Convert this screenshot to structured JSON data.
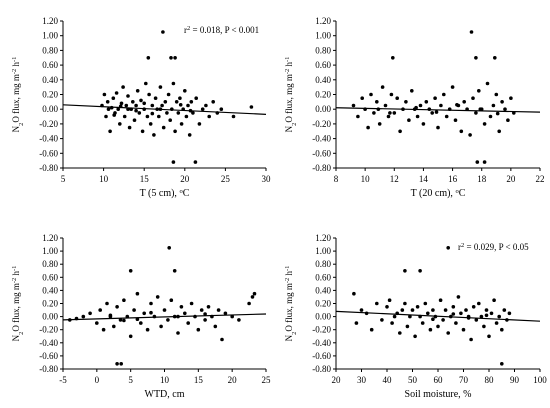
{
  "chart_data": [
    {
      "type": "scatter",
      "ylabel": "N2O flux, mg m-2 h-1",
      "xlabel": "T (5 cm), °C",
      "xlim": [
        5,
        30
      ],
      "ylim": [
        -0.8,
        1.2
      ],
      "xticks": [
        5,
        10,
        15,
        20,
        25,
        30
      ],
      "annotation": "r2 = 0.018, P < 0.001",
      "fit": {
        "x0": 5,
        "y0": 0.06,
        "x1": 30,
        "y1": -0.07
      },
      "points": [
        [
          9.8,
          0.05
        ],
        [
          10.1,
          0.2
        ],
        [
          10.3,
          -0.1
        ],
        [
          10.5,
          0.1
        ],
        [
          10.8,
          -0.3
        ],
        [
          11,
          0.02
        ],
        [
          11.2,
          0.15
        ],
        [
          11.4,
          -0.05
        ],
        [
          11.6,
          0.22
        ],
        [
          11.8,
          0.0
        ],
        [
          12,
          -0.2
        ],
        [
          12.2,
          0.08
        ],
        [
          12.4,
          0.3
        ],
        [
          12.6,
          -0.1
        ],
        [
          12.8,
          0.05
        ],
        [
          13,
          0.18
        ],
        [
          13.2,
          -0.25
        ],
        [
          13.4,
          0.0
        ],
        [
          13.6,
          0.1
        ],
        [
          13.8,
          -0.15
        ],
        [
          14,
          0.05
        ],
        [
          14.2,
          0.25
        ],
        [
          14.4,
          -0.05
        ],
        [
          14.6,
          0.12
        ],
        [
          14.8,
          -0.3
        ],
        [
          15,
          0.0
        ],
        [
          15.2,
          0.35
        ],
        [
          15.4,
          -0.1
        ],
        [
          15.6,
          0.2
        ],
        [
          15.8,
          -0.2
        ],
        [
          16,
          0.05
        ],
        [
          16.2,
          -0.35
        ],
        [
          16.4,
          0.15
        ],
        [
          16.6,
          0.0
        ],
        [
          16.8,
          -0.1
        ],
        [
          17,
          0.3
        ],
        [
          17.2,
          0.05
        ],
        [
          17.4,
          -0.25
        ],
        [
          17.6,
          0.1
        ],
        [
          17.8,
          -0.05
        ],
        [
          18,
          0.2
        ],
        [
          18.2,
          -0.15
        ],
        [
          18.4,
          0.0
        ],
        [
          18.6,
          0.35
        ],
        [
          18.8,
          -0.3
        ],
        [
          19,
          0.1
        ],
        [
          19.2,
          -0.05
        ],
        [
          19.4,
          0.15
        ],
        [
          19.6,
          -0.2
        ],
        [
          19.8,
          0.0
        ],
        [
          20,
          0.25
        ],
        [
          20.2,
          -0.1
        ],
        [
          20.4,
          0.05
        ],
        [
          20.6,
          -0.35
        ],
        [
          20.8,
          0.1
        ],
        [
          21,
          -0.05
        ],
        [
          21.4,
          0.15
        ],
        [
          21.8,
          -0.2
        ],
        [
          22.2,
          0.0
        ],
        [
          22.6,
          0.05
        ],
        [
          23,
          -0.1
        ],
        [
          23.5,
          0.1
        ],
        [
          24,
          -0.05
        ],
        [
          24.5,
          0.0
        ],
        [
          26,
          -0.1
        ],
        [
          28.2,
          0.03
        ],
        [
          17.3,
          1.05
        ],
        [
          15.5,
          0.7
        ],
        [
          18.3,
          0.7
        ],
        [
          18.8,
          0.7
        ],
        [
          18.6,
          -0.72
        ],
        [
          21.3,
          -0.72
        ],
        [
          13,
          0.0
        ],
        [
          14,
          -0.02
        ],
        [
          15,
          0.08
        ],
        [
          16,
          -0.06
        ],
        [
          17,
          0.0
        ],
        [
          10.6,
          0.0
        ],
        [
          11.3,
          -0.08
        ],
        [
          12.1,
          0.04
        ],
        [
          19.5,
          0.06
        ],
        [
          20.7,
          -0.02
        ]
      ]
    },
    {
      "type": "scatter",
      "ylabel": "N2O flux, mg m-2 h-1",
      "xlabel": "T (20 cm), °C",
      "xlim": [
        8,
        22
      ],
      "ylim": [
        -0.8,
        1.2
      ],
      "xticks": [
        8,
        10,
        12,
        14,
        16,
        18,
        20,
        22
      ],
      "annotation": "",
      "fit": {
        "x0": 8,
        "y0": 0.02,
        "x1": 22,
        "y1": -0.04
      },
      "points": [
        [
          9.2,
          0.05
        ],
        [
          9.5,
          -0.1
        ],
        [
          9.8,
          0.15
        ],
        [
          10,
          0.0
        ],
        [
          10.2,
          -0.25
        ],
        [
          10.4,
          0.2
        ],
        [
          10.6,
          -0.05
        ],
        [
          10.8,
          0.1
        ],
        [
          11,
          -0.2
        ],
        [
          11.2,
          0.3
        ],
        [
          11.4,
          0.05
        ],
        [
          11.6,
          -0.1
        ],
        [
          11.8,
          0.2
        ],
        [
          11.9,
          0.7
        ],
        [
          12,
          -0.05
        ],
        [
          12.2,
          0.15
        ],
        [
          12.4,
          -0.3
        ],
        [
          12.6,
          0.0
        ],
        [
          12.8,
          0.1
        ],
        [
          13,
          -0.15
        ],
        [
          13.2,
          0.25
        ],
        [
          13.4,
          0.0
        ],
        [
          13.6,
          -0.1
        ],
        [
          13.8,
          0.05
        ],
        [
          14,
          -0.2
        ],
        [
          14.2,
          0.1
        ],
        [
          14.4,
          0.0
        ],
        [
          14.6,
          -0.05
        ],
        [
          14.8,
          0.15
        ],
        [
          15,
          -0.25
        ],
        [
          15.2,
          0.05
        ],
        [
          15.4,
          0.2
        ],
        [
          15.6,
          -0.1
        ],
        [
          15.8,
          0.0
        ],
        [
          16,
          0.3
        ],
        [
          16.2,
          -0.15
        ],
        [
          16.4,
          0.05
        ],
        [
          16.6,
          -0.3
        ],
        [
          16.8,
          0.1
        ],
        [
          17,
          0.0
        ],
        [
          17.2,
          -0.35
        ],
        [
          17.4,
          0.15
        ],
        [
          17.6,
          -0.05
        ],
        [
          17.8,
          0.25
        ],
        [
          18,
          0.0
        ],
        [
          18.2,
          -0.2
        ],
        [
          18.4,
          0.35
        ],
        [
          18.6,
          -0.1
        ],
        [
          18.8,
          0.05
        ],
        [
          19,
          0.2
        ],
        [
          19.2,
          -0.3
        ],
        [
          19.4,
          0.1
        ],
        [
          19.6,
          0.0
        ],
        [
          19.8,
          -0.15
        ],
        [
          20,
          0.15
        ],
        [
          20.2,
          -0.05
        ],
        [
          17.3,
          1.05
        ],
        [
          17.6,
          0.7
        ],
        [
          18.9,
          0.7
        ],
        [
          17.7,
          -0.72
        ],
        [
          18.2,
          -0.72
        ],
        [
          10.9,
          0.0
        ],
        [
          11.7,
          -0.05
        ],
        [
          13.5,
          0.02
        ],
        [
          14.9,
          -0.04
        ],
        [
          16.3,
          0.06
        ],
        [
          17.9,
          0.0
        ],
        [
          19.1,
          -0.06
        ]
      ]
    },
    {
      "type": "scatter",
      "ylabel": "N2O flux, mg m-2 h-1",
      "xlabel": "WTD, cm",
      "xlim": [
        -5,
        25
      ],
      "ylim": [
        -0.8,
        1.2
      ],
      "xticks": [
        -5,
        0,
        5,
        10,
        15,
        20,
        25
      ],
      "annotation": "",
      "fit": {
        "x0": -5,
        "y0": -0.05,
        "x1": 25,
        "y1": 0.04
      },
      "points": [
        [
          -4,
          -0.05
        ],
        [
          -3,
          -0.03
        ],
        [
          -2,
          0.0
        ],
        [
          -1,
          0.05
        ],
        [
          0,
          -0.1
        ],
        [
          0.5,
          0.1
        ],
        [
          1,
          -0.2
        ],
        [
          1.5,
          0.2
        ],
        [
          2,
          0.0
        ],
        [
          2.5,
          -0.15
        ],
        [
          3,
          0.15
        ],
        [
          3.5,
          -0.05
        ],
        [
          4,
          0.25
        ],
        [
          4.5,
          0.0
        ],
        [
          5,
          -0.3
        ],
        [
          5.5,
          0.1
        ],
        [
          6,
          0.35
        ],
        [
          6.5,
          -0.1
        ],
        [
          7,
          0.05
        ],
        [
          7.5,
          -0.2
        ],
        [
          8,
          0.2
        ],
        [
          8.5,
          0.0
        ],
        [
          9,
          0.3
        ],
        [
          9.5,
          -0.15
        ],
        [
          10,
          0.1
        ],
        [
          10.5,
          -0.05
        ],
        [
          11,
          0.25
        ],
        [
          11.5,
          0.0
        ],
        [
          12,
          -0.25
        ],
        [
          12.5,
          0.15
        ],
        [
          13,
          0.05
        ],
        [
          13.5,
          -0.1
        ],
        [
          14,
          0.2
        ],
        [
          14.5,
          0.0
        ],
        [
          15,
          -0.2
        ],
        [
          15.5,
          0.1
        ],
        [
          16,
          -0.05
        ],
        [
          16.5,
          0.15
        ],
        [
          17,
          0.0
        ],
        [
          17.5,
          -0.15
        ],
        [
          18,
          0.1
        ],
        [
          18.5,
          -0.35
        ],
        [
          19,
          0.05
        ],
        [
          20,
          0.0
        ],
        [
          21,
          -0.05
        ],
        [
          22.5,
          0.2
        ],
        [
          23,
          0.3
        ],
        [
          23.3,
          0.35
        ],
        [
          10.7,
          1.05
        ],
        [
          5,
          0.7
        ],
        [
          11.5,
          0.7
        ],
        [
          3,
          -0.72
        ],
        [
          3.6,
          -0.72
        ],
        [
          2,
          0.02
        ],
        [
          6,
          -0.04
        ],
        [
          8,
          0.06
        ],
        [
          12,
          0.0
        ],
        [
          16,
          0.04
        ],
        [
          4,
          -0.06
        ]
      ]
    },
    {
      "type": "scatter",
      "ylabel": "N2O flux, mg m-2 h-1",
      "xlabel": "Soil moisture, %",
      "xlim": [
        20,
        100
      ],
      "ylim": [
        -0.8,
        1.2
      ],
      "xticks": [
        20,
        30,
        40,
        50,
        60,
        70,
        80,
        90,
        100
      ],
      "annotation": "r2 = 0.029, P < 0.05",
      "fit": {
        "x0": 20,
        "y0": 0.08,
        "x1": 100,
        "y1": -0.07
      },
      "points": [
        [
          27,
          0.35
        ],
        [
          28,
          -0.1
        ],
        [
          30,
          0.1
        ],
        [
          32,
          0.05
        ],
        [
          34,
          -0.2
        ],
        [
          36,
          0.2
        ],
        [
          38,
          -0.05
        ],
        [
          40,
          0.15
        ],
        [
          41,
          0.25
        ],
        [
          42,
          -0.1
        ],
        [
          44,
          0.05
        ],
        [
          45,
          -0.25
        ],
        [
          46,
          0.1
        ],
        [
          47,
          0.2
        ],
        [
          48,
          -0.15
        ],
        [
          49,
          0.0
        ],
        [
          50,
          0.1
        ],
        [
          51,
          -0.3
        ],
        [
          52,
          0.15
        ],
        [
          53,
          0.0
        ],
        [
          54,
          -0.1
        ],
        [
          55,
          0.2
        ],
        [
          56,
          0.05
        ],
        [
          57,
          -0.2
        ],
        [
          58,
          0.1
        ],
        [
          59,
          0.0
        ],
        [
          60,
          -0.15
        ],
        [
          61,
          0.25
        ],
        [
          62,
          -0.05
        ],
        [
          63,
          0.1
        ],
        [
          64,
          -0.25
        ],
        [
          65,
          0.0
        ],
        [
          66,
          0.15
        ],
        [
          67,
          -0.1
        ],
        [
          68,
          0.3
        ],
        [
          69,
          0.05
        ],
        [
          70,
          -0.2
        ],
        [
          71,
          0.1
        ],
        [
          72,
          0.0
        ],
        [
          73,
          -0.35
        ],
        [
          74,
          0.15
        ],
        [
          75,
          -0.05
        ],
        [
          76,
          0.2
        ],
        [
          77,
          0.0
        ],
        [
          78,
          -0.15
        ],
        [
          79,
          0.1
        ],
        [
          80,
          -0.3
        ],
        [
          81,
          0.05
        ],
        [
          82,
          0.25
        ],
        [
          83,
          -0.1
        ],
        [
          84,
          0.0
        ],
        [
          85,
          -0.2
        ],
        [
          86,
          0.1
        ],
        [
          87,
          -0.05
        ],
        [
          88,
          0.05
        ],
        [
          64,
          1.05
        ],
        [
          47,
          0.7
        ],
        [
          53,
          0.7
        ],
        [
          85,
          -0.72
        ],
        [
          43,
          0.0
        ],
        [
          58,
          -0.04
        ],
        [
          66,
          0.04
        ],
        [
          72,
          -0.02
        ],
        [
          79,
          0.02
        ]
      ]
    }
  ]
}
